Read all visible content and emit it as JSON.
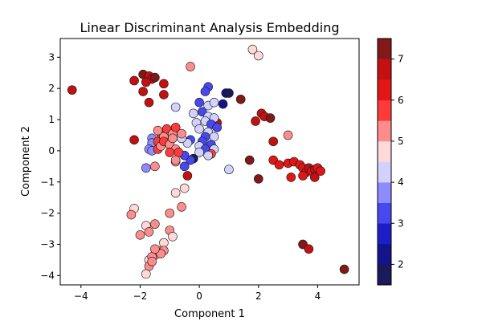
{
  "chart_data": {
    "type": "scatter",
    "title": "Linear Discriminant Analysis Embedding",
    "xlabel": "Component 1",
    "ylabel": "Component 2",
    "xlim": [
      -4.7,
      5.4
    ],
    "ylim": [
      -4.3,
      3.6
    ],
    "xticks": [
      -4,
      -2,
      0,
      2,
      4
    ],
    "yticks": [
      -4,
      -3,
      -2,
      -1,
      0,
      1,
      2,
      3
    ],
    "grid": false,
    "colorbar": {
      "range": [
        1.5,
        7.5
      ],
      "ticks": [
        2,
        3,
        4,
        5,
        6,
        7
      ],
      "colormap": "seismic (discrete, 12 levels)",
      "colors": [
        "#1a1a5a",
        "#14148a",
        "#1e1ec8",
        "#4848f0",
        "#8c8cff",
        "#d2d2ff",
        "#ffd8d8",
        "#ff8c8c",
        "#ff3a3a",
        "#e21616",
        "#c41010",
        "#821818"
      ]
    },
    "points": [
      {
        "x": -4.3,
        "y": 1.95,
        "c": 6.6
      },
      {
        "x": -1.9,
        "y": 2.45,
        "c": 7.0
      },
      {
        "x": -1.7,
        "y": 2.4,
        "c": 6.8
      },
      {
        "x": -1.6,
        "y": 2.3,
        "c": 6.6
      },
      {
        "x": -1.8,
        "y": 2.2,
        "c": 6.7
      },
      {
        "x": -1.5,
        "y": 2.35,
        "c": 7.0
      },
      {
        "x": -2.2,
        "y": 2.25,
        "c": 6.7
      },
      {
        "x": -1.9,
        "y": 1.9,
        "c": 6.6
      },
      {
        "x": -1.7,
        "y": 1.55,
        "c": 6.6
      },
      {
        "x": -1.2,
        "y": 2.15,
        "c": 6.6
      },
      {
        "x": -1.2,
        "y": 1.8,
        "c": 6.7
      },
      {
        "x": -0.3,
        "y": 2.7,
        "c": 5.3
      },
      {
        "x": 1.8,
        "y": 3.25,
        "c": 4.9
      },
      {
        "x": 2.0,
        "y": 3.05,
        "c": 4.9
      },
      {
        "x": -2.2,
        "y": 0.35,
        "c": 6.6
      },
      {
        "x": 1.4,
        "y": 1.65,
        "c": 7.1
      },
      {
        "x": 2.1,
        "y": 1.2,
        "c": 6.8
      },
      {
        "x": 2.2,
        "y": 1.1,
        "c": 6.9
      },
      {
        "x": 2.4,
        "y": 1.05,
        "c": 7.0
      },
      {
        "x": 1.9,
        "y": 0.95,
        "c": 6.7
      },
      {
        "x": 0.6,
        "y": 0.9,
        "c": 6.7
      },
      {
        "x": 2.5,
        "y": 0.3,
        "c": 6.6
      },
      {
        "x": 3.0,
        "y": 0.5,
        "c": 5.4
      },
      {
        "x": 1.7,
        "y": -0.3,
        "c": 7.2
      },
      {
        "x": 2.0,
        "y": -0.9,
        "c": 7.3
      },
      {
        "x": 2.5,
        "y": -0.3,
        "c": 6.3
      },
      {
        "x": 2.7,
        "y": -0.45,
        "c": 6.2
      },
      {
        "x": 3.0,
        "y": -0.4,
        "c": 6.3
      },
      {
        "x": 3.2,
        "y": -0.35,
        "c": 6.2
      },
      {
        "x": 3.4,
        "y": -0.45,
        "c": 6.3
      },
      {
        "x": 3.5,
        "y": -0.55,
        "c": 6.4
      },
      {
        "x": 3.6,
        "y": -0.7,
        "c": 6.3
      },
      {
        "x": 3.7,
        "y": -0.55,
        "c": 6.5
      },
      {
        "x": 3.8,
        "y": -0.65,
        "c": 6.4
      },
      {
        "x": 3.9,
        "y": -0.6,
        "c": 6.6
      },
      {
        "x": 4.0,
        "y": -0.55,
        "c": 6.4
      },
      {
        "x": 4.1,
        "y": -0.65,
        "c": 6.3
      },
      {
        "x": 3.5,
        "y": -0.8,
        "c": 6.2
      },
      {
        "x": 3.9,
        "y": -0.85,
        "c": 6.5
      },
      {
        "x": 3.1,
        "y": -0.85,
        "c": 6.3
      },
      {
        "x": 3.5,
        "y": -3.0,
        "c": 7.4
      },
      {
        "x": 3.7,
        "y": -3.15,
        "c": 6.7
      },
      {
        "x": 4.9,
        "y": -3.8,
        "c": 7.4
      },
      {
        "x": 0.3,
        "y": 2.05,
        "c": 3.2
      },
      {
        "x": 0.2,
        "y": 1.9,
        "c": 3.0
      },
      {
        "x": 0.9,
        "y": 1.85,
        "c": 2.0
      },
      {
        "x": 1.0,
        "y": 1.85,
        "c": 1.9
      },
      {
        "x": 0.8,
        "y": 1.5,
        "c": 2.2
      },
      {
        "x": 0.3,
        "y": 1.45,
        "c": 4.3
      },
      {
        "x": 0.5,
        "y": 1.55,
        "c": 4.2
      },
      {
        "x": -0.8,
        "y": 1.4,
        "c": 4.1
      },
      {
        "x": 0.0,
        "y": 1.55,
        "c": 3.1
      },
      {
        "x": -0.2,
        "y": 1.2,
        "c": 4.2
      },
      {
        "x": 0.1,
        "y": 1.25,
        "c": 3.3
      },
      {
        "x": 0.3,
        "y": 1.1,
        "c": 4.2
      },
      {
        "x": 0.5,
        "y": 1.05,
        "c": 4.3
      },
      {
        "x": -0.1,
        "y": 0.9,
        "c": 4.4
      },
      {
        "x": 0.2,
        "y": 0.95,
        "c": 4.1
      },
      {
        "x": 0.4,
        "y": 0.85,
        "c": 3.3
      },
      {
        "x": 0.6,
        "y": 0.75,
        "c": 3.2
      },
      {
        "x": 0.0,
        "y": 0.7,
        "c": 4.0
      },
      {
        "x": 0.3,
        "y": 0.6,
        "c": 4.2
      },
      {
        "x": 0.5,
        "y": 0.45,
        "c": 4.1
      },
      {
        "x": 0.2,
        "y": 0.45,
        "c": 3.1
      },
      {
        "x": 0.4,
        "y": 0.2,
        "c": 3.2
      },
      {
        "x": 0.1,
        "y": 0.3,
        "c": 3.4
      },
      {
        "x": -0.3,
        "y": 0.35,
        "c": 3.1
      },
      {
        "x": -0.4,
        "y": 0.25,
        "c": 4.2
      },
      {
        "x": -0.6,
        "y": 0.4,
        "c": 4.0
      },
      {
        "x": 0.0,
        "y": 0.15,
        "c": 4.2
      },
      {
        "x": 0.2,
        "y": 0.05,
        "c": 3.3
      },
      {
        "x": 0.5,
        "y": 0.05,
        "c": 4.1
      },
      {
        "x": 0.4,
        "y": -0.1,
        "c": 5.5
      },
      {
        "x": 0.3,
        "y": -0.15,
        "c": 4.3
      },
      {
        "x": 0.0,
        "y": -0.05,
        "c": 4.2
      },
      {
        "x": -0.2,
        "y": -0.25,
        "c": 1.8
      },
      {
        "x": -0.3,
        "y": -0.3,
        "c": 3.0
      },
      {
        "x": -0.5,
        "y": -0.15,
        "c": 3.1
      },
      {
        "x": -0.5,
        "y": -0.5,
        "c": 3.2
      },
      {
        "x": -0.8,
        "y": -0.35,
        "c": 5.4
      },
      {
        "x": -0.4,
        "y": -0.8,
        "c": 6.7
      },
      {
        "x": 1.0,
        "y": -0.6,
        "c": 4.2
      },
      {
        "x": -1.8,
        "y": -0.55,
        "c": 3.6
      },
      {
        "x": -1.5,
        "y": -0.5,
        "c": 5.3
      },
      {
        "x": -1.6,
        "y": 0.4,
        "c": 3.8
      },
      {
        "x": -1.6,
        "y": 0.25,
        "c": 3.7
      },
      {
        "x": -1.7,
        "y": 0.05,
        "c": 3.9
      },
      {
        "x": -1.6,
        "y": 0.0,
        "c": 3.8
      },
      {
        "x": -1.4,
        "y": 0.3,
        "c": 5.5
      },
      {
        "x": -1.3,
        "y": 0.55,
        "c": 5.5
      },
      {
        "x": -1.2,
        "y": 0.45,
        "c": 5.4
      },
      {
        "x": -1.1,
        "y": 0.7,
        "c": 5.5
      },
      {
        "x": -0.9,
        "y": 0.55,
        "c": 5.4
      },
      {
        "x": -0.8,
        "y": 0.75,
        "c": 5.5
      },
      {
        "x": -0.6,
        "y": 0.55,
        "c": 5.3
      },
      {
        "x": -1.4,
        "y": 0.05,
        "c": 5.5
      },
      {
        "x": -1.3,
        "y": 0.15,
        "c": 5.4
      },
      {
        "x": -1.2,
        "y": 0.3,
        "c": 5.5
      },
      {
        "x": -1.0,
        "y": 0.2,
        "c": 5.3
      },
      {
        "x": -0.9,
        "y": 0.4,
        "c": 5.4
      },
      {
        "x": -0.8,
        "y": 0.05,
        "c": 5.4
      },
      {
        "x": -0.7,
        "y": -0.05,
        "c": 5.5
      },
      {
        "x": -1.4,
        "y": 0.65,
        "c": 5.2
      },
      {
        "x": -1.0,
        "y": -0.05,
        "c": 5.5
      },
      {
        "x": -0.8,
        "y": -0.3,
        "c": 5.3
      },
      {
        "x": -0.8,
        "y": -1.35,
        "c": 4.9
      },
      {
        "x": -0.5,
        "y": -1.2,
        "c": 4.9
      },
      {
        "x": -0.6,
        "y": -1.8,
        "c": 5.1
      },
      {
        "x": -1.0,
        "y": -2.0,
        "c": 5.0
      },
      {
        "x": -2.2,
        "y": -1.85,
        "c": 4.9
      },
      {
        "x": -2.3,
        "y": -2.05,
        "c": 5.3
      },
      {
        "x": -2.0,
        "y": -2.7,
        "c": 5.0
      },
      {
        "x": -1.8,
        "y": -2.4,
        "c": 4.9
      },
      {
        "x": -1.5,
        "y": -2.35,
        "c": 5.1
      },
      {
        "x": -1.7,
        "y": -2.6,
        "c": 5.0
      },
      {
        "x": -1.0,
        "y": -2.55,
        "c": 5.0
      },
      {
        "x": -0.9,
        "y": -2.75,
        "c": 4.9
      },
      {
        "x": -1.2,
        "y": -2.95,
        "c": 4.9
      },
      {
        "x": -1.4,
        "y": -3.2,
        "c": 5.0
      },
      {
        "x": -1.2,
        "y": -3.2,
        "c": 5.2
      },
      {
        "x": -1.5,
        "y": -3.35,
        "c": 5.0
      },
      {
        "x": -1.7,
        "y": -3.5,
        "c": 4.9
      },
      {
        "x": -1.6,
        "y": -3.4,
        "c": 5.0
      },
      {
        "x": -1.3,
        "y": -3.3,
        "c": 5.1
      },
      {
        "x": -1.5,
        "y": -3.15,
        "c": 5.0
      },
      {
        "x": -1.7,
        "y": -3.7,
        "c": 5.0
      },
      {
        "x": -1.8,
        "y": -3.95,
        "c": 4.9
      },
      {
        "x": -1.6,
        "y": -3.55,
        "c": 5.2
      }
    ]
  }
}
